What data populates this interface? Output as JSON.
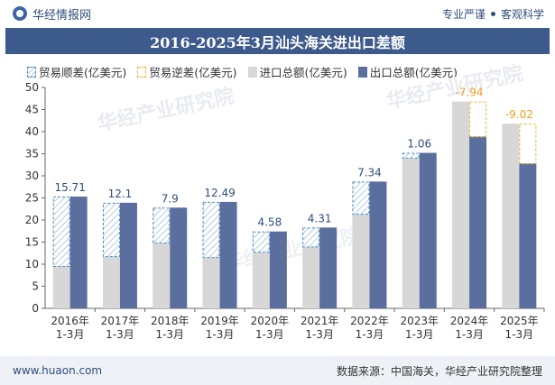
{
  "header": {
    "logo_text": "华经情报网",
    "tagline_1": "专业严谨",
    "tagline_2": "客观科学"
  },
  "title": "2016-2025年3月汕头海关进出口差额",
  "legend": {
    "surplus": "贸易顺差(亿美元)",
    "deficit": "贸易逆差(亿美元)",
    "import": "进口总额(亿美元)",
    "export": "出口总额(亿美元)"
  },
  "colors": {
    "import": "#d7d7d7",
    "export": "#5b6f9e",
    "surplus_label": "#2f4d7c",
    "deficit_label": "#f0a020"
  },
  "watermark": "华经产业研究院",
  "footer": {
    "left": "www.huaon.com",
    "right": "数据来源：中国海关，华经产业研究院整理"
  },
  "chart_data": {
    "type": "bar",
    "categories": [
      [
        "2016年",
        "1-3月"
      ],
      [
        "2017年",
        "1-3月"
      ],
      [
        "2018年",
        "1-3月"
      ],
      [
        "2019年",
        "1-3月"
      ],
      [
        "2020年",
        "1-3月"
      ],
      [
        "2021年",
        "1-3月"
      ],
      [
        "2022年",
        "1-3月"
      ],
      [
        "2023年",
        "1-3月"
      ],
      [
        "2024年",
        "1-3月"
      ],
      [
        "2025年",
        "1-3月"
      ]
    ],
    "series": [
      {
        "name": "进口总额(亿美元)",
        "values": [
          9.6,
          11.8,
          14.9,
          11.6,
          12.8,
          14.0,
          21.4,
          34.1,
          46.8,
          41.8
        ]
      },
      {
        "name": "出口总额(亿美元)",
        "values": [
          25.3,
          23.9,
          22.8,
          24.1,
          17.4,
          18.3,
          28.7,
          35.2,
          38.9,
          32.8
        ]
      }
    ],
    "balance_labels": [
      "15.71",
      "12.1",
      "7.9",
      "12.49",
      "4.58",
      "4.31",
      "7.34",
      "1.06",
      "-7.94",
      "-9.02"
    ],
    "ylim": [
      0,
      50
    ],
    "yticks": [
      0,
      5,
      10,
      15,
      20,
      25,
      30,
      35,
      40,
      45,
      50
    ],
    "grid": false,
    "legend_position": "top"
  }
}
